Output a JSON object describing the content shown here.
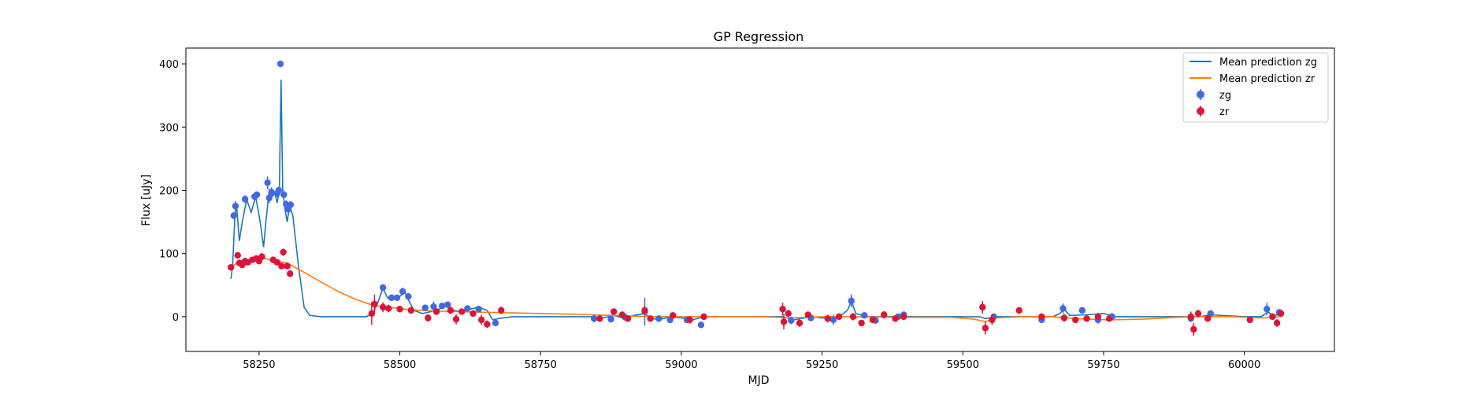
{
  "chart_data": {
    "type": "scatter",
    "title": "GP Regression",
    "xlabel": "MJD",
    "ylabel": "Flux [uJy]",
    "xlim": [
      58120,
      60160
    ],
    "ylim": [
      -55,
      425
    ],
    "xticks": [
      58250,
      58500,
      58750,
      59000,
      59250,
      59500,
      59750,
      60000
    ],
    "yticks": [
      0,
      100,
      200,
      300,
      400
    ],
    "grid": false,
    "legend_position": "top-right",
    "legend": [
      "Mean prediction zg",
      "Mean prediction zr",
      "zg",
      "zr"
    ],
    "colors": {
      "line_zg": "#1f77b4",
      "line_zr": "#ff7f0e",
      "points_zg": "#4169e1",
      "points_zr": "#dc143c"
    },
    "lines": [
      {
        "name": "Mean prediction zg",
        "points": [
          [
            58200,
            60
          ],
          [
            58203,
            80
          ],
          [
            58207,
            160
          ],
          [
            58210,
            175
          ],
          [
            58215,
            120
          ],
          [
            58220,
            150
          ],
          [
            58228,
            185
          ],
          [
            58236,
            165
          ],
          [
            58244,
            190
          ],
          [
            58252,
            150
          ],
          [
            58258,
            110
          ],
          [
            58262,
            150
          ],
          [
            58268,
            200
          ],
          [
            58273,
            190
          ],
          [
            58278,
            195
          ],
          [
            58282,
            180
          ],
          [
            58286,
            200
          ],
          [
            58289,
            375
          ],
          [
            58292,
            200
          ],
          [
            58296,
            170
          ],
          [
            58300,
            150
          ],
          [
            58304,
            175
          ],
          [
            58310,
            160
          ],
          [
            58320,
            80
          ],
          [
            58330,
            15
          ],
          [
            58340,
            2
          ],
          [
            58360,
            0
          ],
          [
            58440,
            0
          ],
          [
            58452,
            5
          ],
          [
            58462,
            25
          ],
          [
            58470,
            45
          ],
          [
            58478,
            30
          ],
          [
            58488,
            28
          ],
          [
            58498,
            30
          ],
          [
            58508,
            40
          ],
          [
            58516,
            25
          ],
          [
            58525,
            10
          ],
          [
            58540,
            5
          ],
          [
            58555,
            8
          ],
          [
            58570,
            12
          ],
          [
            58585,
            18
          ],
          [
            58595,
            10
          ],
          [
            58610,
            8
          ],
          [
            58625,
            12
          ],
          [
            58640,
            15
          ],
          [
            58655,
            10
          ],
          [
            58665,
            -5
          ],
          [
            58675,
            -3
          ],
          [
            58700,
            0
          ],
          [
            58840,
            0
          ],
          [
            58860,
            -2
          ],
          [
            58880,
            2
          ],
          [
            58900,
            -3
          ],
          [
            58915,
            2
          ],
          [
            58935,
            5
          ],
          [
            58945,
            -2
          ],
          [
            58960,
            -5
          ],
          [
            58980,
            0
          ],
          [
            59000,
            -2
          ],
          [
            59020,
            -5
          ],
          [
            59040,
            0
          ],
          [
            59060,
            0
          ],
          [
            59180,
            0
          ],
          [
            59200,
            -5
          ],
          [
            59230,
            0
          ],
          [
            59260,
            -3
          ],
          [
            59280,
            0
          ],
          [
            59295,
            10
          ],
          [
            59302,
            25
          ],
          [
            59310,
            5
          ],
          [
            59330,
            0
          ],
          [
            59400,
            0
          ],
          [
            59530,
            0
          ],
          [
            59540,
            -3
          ],
          [
            59560,
            0
          ],
          [
            59660,
            0
          ],
          [
            59672,
            5
          ],
          [
            59680,
            12
          ],
          [
            59690,
            2
          ],
          [
            59720,
            3
          ],
          [
            59750,
            5
          ],
          [
            59770,
            0
          ],
          [
            59900,
            0
          ],
          [
            59920,
            0
          ],
          [
            59940,
            3
          ],
          [
            60000,
            0
          ],
          [
            60030,
            0
          ],
          [
            60042,
            8
          ],
          [
            60050,
            2
          ],
          [
            60065,
            3
          ]
        ]
      },
      {
        "name": "Mean prediction zr",
        "points": [
          [
            58200,
            78
          ],
          [
            58215,
            88
          ],
          [
            58240,
            90
          ],
          [
            58260,
            92
          ],
          [
            58280,
            88
          ],
          [
            58300,
            85
          ],
          [
            58330,
            70
          ],
          [
            58360,
            55
          ],
          [
            58390,
            40
          ],
          [
            58420,
            28
          ],
          [
            58445,
            20
          ],
          [
            58460,
            17
          ],
          [
            58490,
            14
          ],
          [
            58520,
            11
          ],
          [
            58560,
            9
          ],
          [
            58600,
            8
          ],
          [
            58650,
            7
          ],
          [
            58700,
            6
          ],
          [
            58800,
            4
          ],
          [
            58880,
            2
          ],
          [
            58950,
            0
          ],
          [
            59050,
            0
          ],
          [
            59150,
            0
          ],
          [
            59190,
            -2
          ],
          [
            59250,
            0
          ],
          [
            59300,
            0
          ],
          [
            59400,
            -1
          ],
          [
            59480,
            -1
          ],
          [
            59520,
            -4
          ],
          [
            59540,
            -8
          ],
          [
            59560,
            -2
          ],
          [
            59600,
            0
          ],
          [
            59660,
            0
          ],
          [
            59700,
            -3
          ],
          [
            59760,
            -5
          ],
          [
            59820,
            -4
          ],
          [
            59880,
            -1
          ],
          [
            59920,
            0
          ],
          [
            59980,
            0
          ],
          [
            60030,
            -2
          ],
          [
            60065,
            0
          ]
        ]
      }
    ],
    "series": [
      {
        "name": "zg",
        "points": [
          [
            58205,
            160,
            6
          ],
          [
            58208,
            175,
            8
          ],
          [
            58225,
            186,
            6
          ],
          [
            58242,
            190,
            6
          ],
          [
            58246,
            193,
            5
          ],
          [
            58265,
            212,
            10
          ],
          [
            58268,
            188,
            8
          ],
          [
            58272,
            197,
            8
          ],
          [
            58282,
            195,
            6
          ],
          [
            58285,
            200,
            6
          ],
          [
            58288,
            400,
            4
          ],
          [
            58294,
            193,
            6
          ],
          [
            58298,
            178,
            6
          ],
          [
            58302,
            170,
            8
          ],
          [
            58306,
            177,
            6
          ],
          [
            58470,
            46,
            5
          ],
          [
            58485,
            30,
            4
          ],
          [
            58495,
            30,
            4
          ],
          [
            58505,
            40,
            6
          ],
          [
            58515,
            32,
            4
          ],
          [
            58545,
            14,
            4
          ],
          [
            58560,
            16,
            8
          ],
          [
            58575,
            17,
            4
          ],
          [
            58585,
            19,
            4
          ],
          [
            58620,
            13,
            4
          ],
          [
            58640,
            12,
            4
          ],
          [
            58670,
            -10,
            5
          ],
          [
            58845,
            -3,
            6
          ],
          [
            58875,
            -4,
            4
          ],
          [
            58900,
            -1,
            4
          ],
          [
            58935,
            8,
            22
          ],
          [
            58960,
            -3,
            4
          ],
          [
            58980,
            -5,
            4
          ],
          [
            59010,
            -5,
            4
          ],
          [
            59035,
            -13,
            5
          ],
          [
            59195,
            -6,
            6
          ],
          [
            59230,
            -2,
            4
          ],
          [
            59270,
            -5,
            8
          ],
          [
            59302,
            25,
            10
          ],
          [
            59325,
            2,
            4
          ],
          [
            59345,
            -6,
            5
          ],
          [
            59385,
            0,
            4
          ],
          [
            59395,
            3,
            4
          ],
          [
            59555,
            0,
            4
          ],
          [
            59640,
            -5,
            4
          ],
          [
            59678,
            13,
            8
          ],
          [
            59712,
            10,
            5
          ],
          [
            59740,
            -5,
            6
          ],
          [
            59765,
            0,
            6
          ],
          [
            59905,
            -3,
            4
          ],
          [
            59940,
            5,
            4
          ],
          [
            60040,
            12,
            10
          ],
          [
            60062,
            7,
            4
          ]
        ]
      },
      {
        "name": "zr",
        "points": [
          [
            58200,
            78,
            4
          ],
          [
            58212,
            97,
            5
          ],
          [
            58215,
            85,
            5
          ],
          [
            58220,
            82,
            4
          ],
          [
            58225,
            88,
            4
          ],
          [
            58230,
            86,
            5
          ],
          [
            58238,
            90,
            4
          ],
          [
            58245,
            92,
            4
          ],
          [
            58250,
            88,
            5
          ],
          [
            58255,
            95,
            6
          ],
          [
            58275,
            90,
            5
          ],
          [
            58282,
            86,
            5
          ],
          [
            58290,
            80,
            5
          ],
          [
            58293,
            102,
            6
          ],
          [
            58300,
            80,
            5
          ],
          [
            58305,
            68,
            5
          ],
          [
            58450,
            5,
            18
          ],
          [
            58455,
            20,
            15
          ],
          [
            58470,
            15,
            8
          ],
          [
            58480,
            13,
            6
          ],
          [
            58500,
            12,
            5
          ],
          [
            58520,
            10,
            5
          ],
          [
            58550,
            -2,
            6
          ],
          [
            58565,
            8,
            5
          ],
          [
            58590,
            10,
            6
          ],
          [
            58600,
            -4,
            8
          ],
          [
            58610,
            8,
            5
          ],
          [
            58630,
            5,
            4
          ],
          [
            58645,
            -5,
            8
          ],
          [
            58655,
            -12,
            6
          ],
          [
            58680,
            10,
            6
          ],
          [
            58855,
            -3,
            4
          ],
          [
            58880,
            8,
            4
          ],
          [
            58895,
            3,
            4
          ],
          [
            58905,
            -3,
            5
          ],
          [
            58935,
            10,
            6
          ],
          [
            58945,
            -3,
            5
          ],
          [
            58985,
            2,
            4
          ],
          [
            59015,
            -5,
            6
          ],
          [
            59040,
            0,
            4
          ],
          [
            59180,
            12,
            10
          ],
          [
            59182,
            -8,
            12
          ],
          [
            59190,
            5,
            6
          ],
          [
            59210,
            -10,
            6
          ],
          [
            59225,
            3,
            5
          ],
          [
            59260,
            -3,
            6
          ],
          [
            59280,
            0,
            5
          ],
          [
            59305,
            0,
            6
          ],
          [
            59320,
            -10,
            5
          ],
          [
            59340,
            -5,
            5
          ],
          [
            59360,
            3,
            6
          ],
          [
            59380,
            -3,
            5
          ],
          [
            59395,
            0,
            4
          ],
          [
            59535,
            15,
            10
          ],
          [
            59540,
            -18,
            10
          ],
          [
            59552,
            -5,
            8
          ],
          [
            59600,
            10,
            5
          ],
          [
            59640,
            0,
            4
          ],
          [
            59680,
            -2,
            6
          ],
          [
            59700,
            -5,
            5
          ],
          [
            59720,
            -3,
            5
          ],
          [
            59740,
            0,
            6
          ],
          [
            59760,
            -3,
            5
          ],
          [
            59905,
            0,
            8
          ],
          [
            59910,
            -20,
            10
          ],
          [
            59918,
            5,
            6
          ],
          [
            59935,
            -3,
            5
          ],
          [
            60010,
            -5,
            4
          ],
          [
            60050,
            0,
            5
          ],
          [
            60058,
            -10,
            6
          ],
          [
            60065,
            5,
            5
          ]
        ]
      }
    ]
  }
}
